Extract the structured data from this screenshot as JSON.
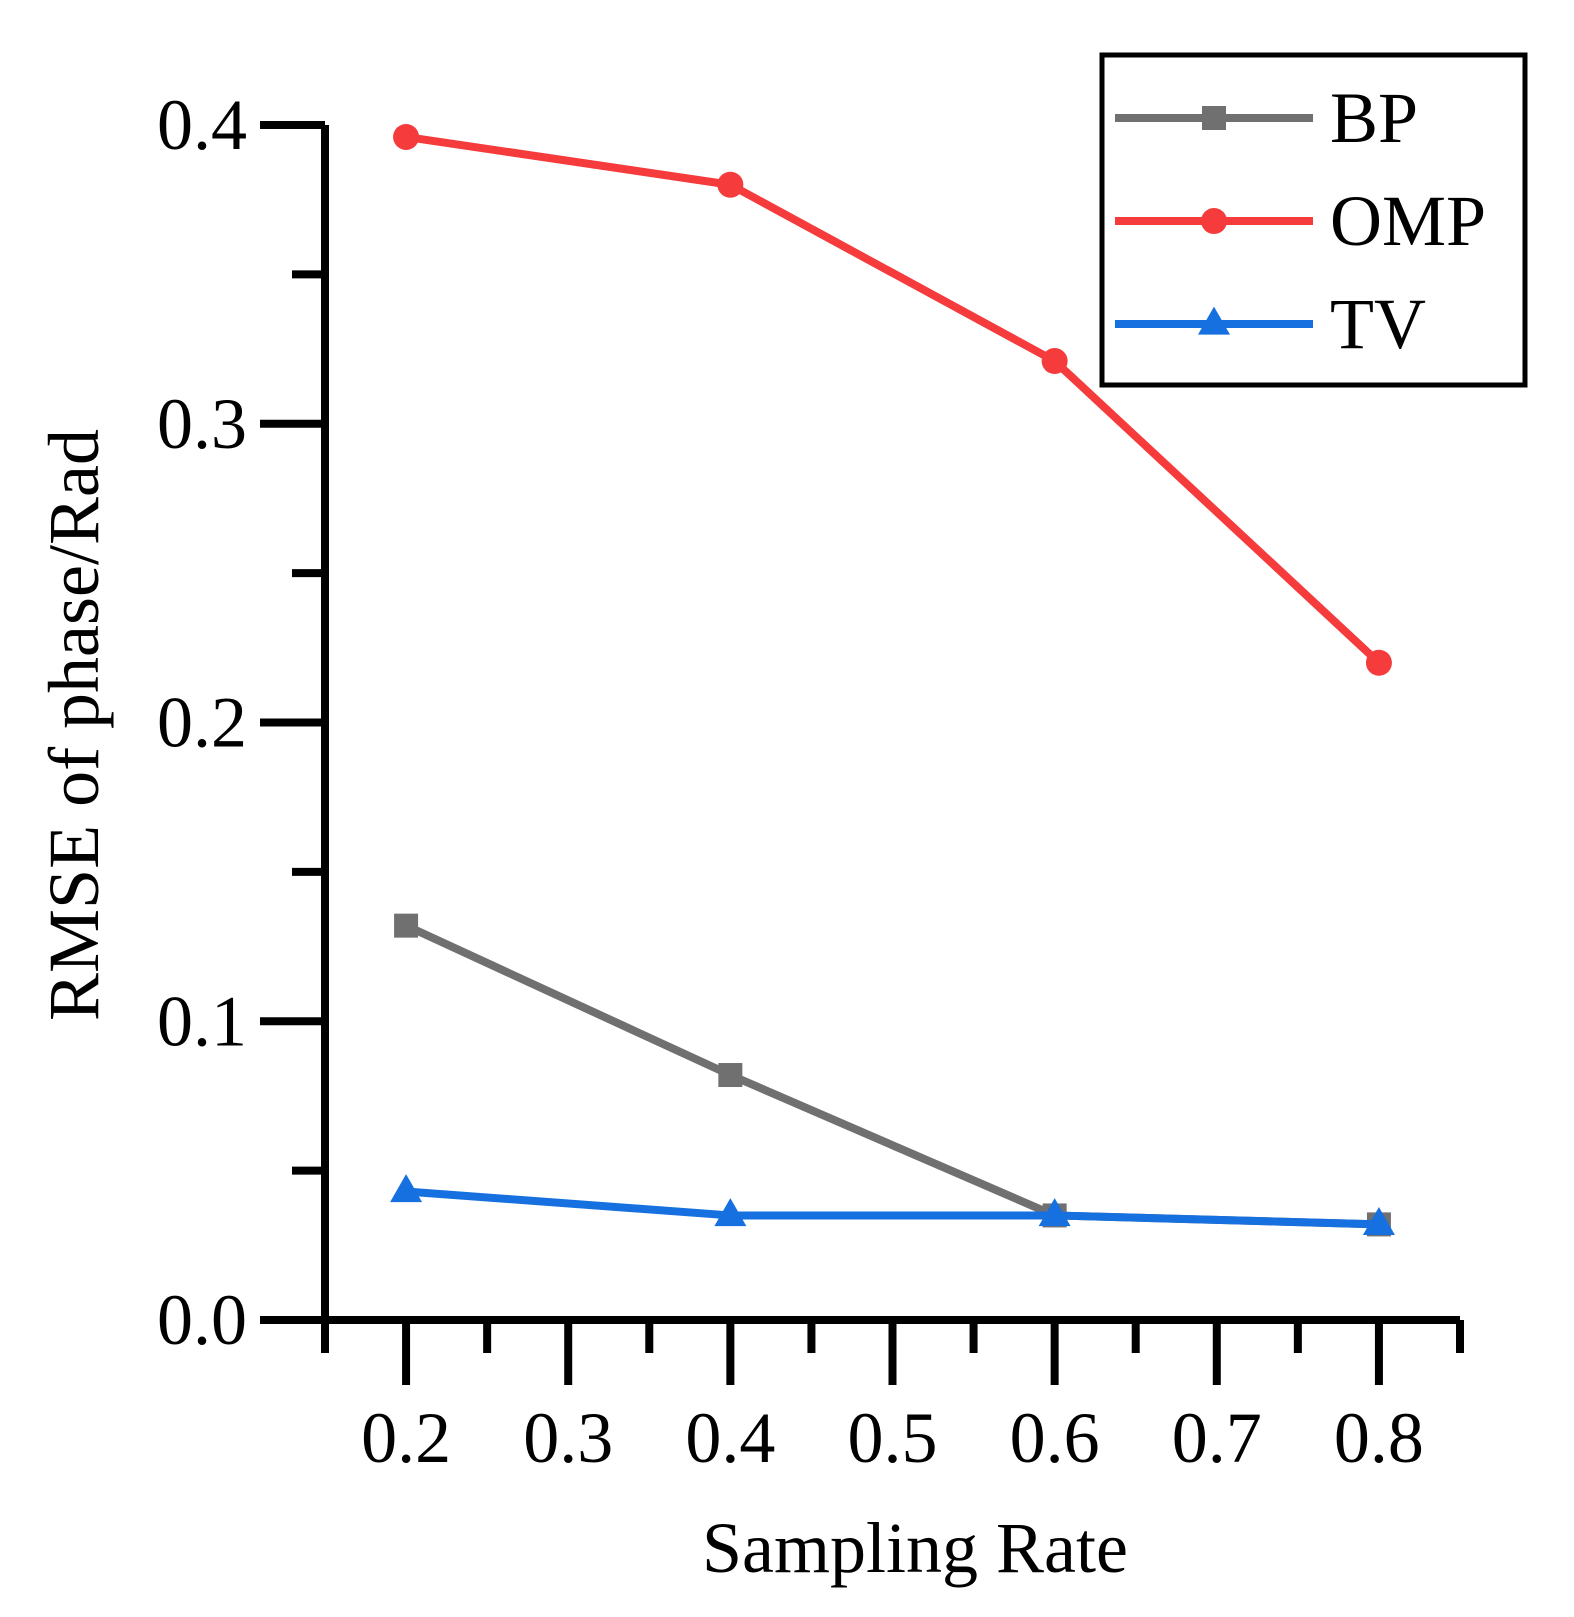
{
  "chart_data": {
    "type": "line",
    "title": "",
    "xlabel": "Sampling Rate",
    "ylabel": "RMSE of phase/Rad",
    "xlim": [
      0.15,
      0.85
    ],
    "ylim": [
      0.0,
      0.4
    ],
    "x_ticks": [
      0.2,
      0.3,
      0.4,
      0.5,
      0.6,
      0.7,
      0.8
    ],
    "x_tick_labels": [
      "0.2",
      "0.3",
      "0.4",
      "0.5",
      "0.6",
      "0.7",
      "0.8"
    ],
    "y_ticks": [
      0.0,
      0.1,
      0.2,
      0.3,
      0.4
    ],
    "y_tick_labels": [
      "0.0",
      "0.1",
      "0.2",
      "0.3",
      "0.4"
    ],
    "grid": false,
    "legend_position": "top-right",
    "x": [
      0.2,
      0.4,
      0.6,
      0.8
    ],
    "series": [
      {
        "name": "BP",
        "values": [
          0.132,
          0.082,
          0.035,
          0.032
        ],
        "color": "#707070",
        "marker": "square"
      },
      {
        "name": "OMP",
        "values": [
          0.396,
          0.38,
          0.321,
          0.22
        ],
        "color": "#f53b3b",
        "marker": "circle"
      },
      {
        "name": "TV",
        "values": [
          0.043,
          0.035,
          0.035,
          0.032
        ],
        "color": "#1670e0",
        "marker": "triangle"
      }
    ]
  }
}
